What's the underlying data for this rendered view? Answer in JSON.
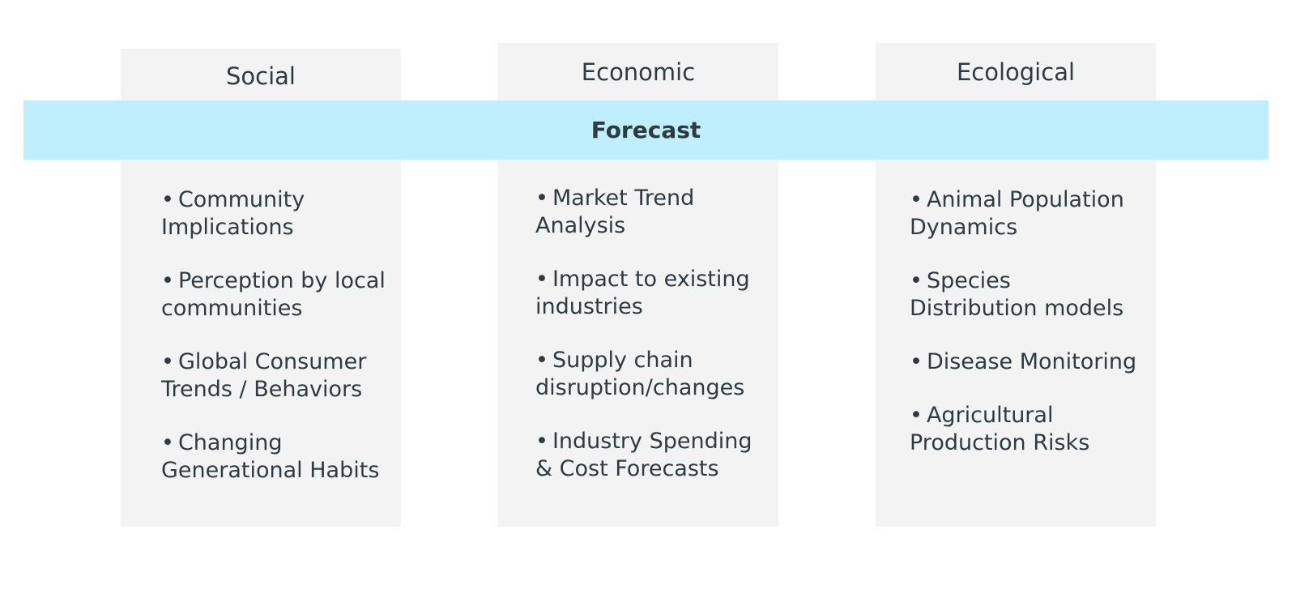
{
  "band": {
    "label": "Forecast",
    "color": "#bfeefc"
  },
  "columns": [
    {
      "title": "Social",
      "items": [
        "Community Implications",
        "Perception by local communities",
        "Global Consumer Trends / Behaviors",
        "Changing Generational Habits"
      ]
    },
    {
      "title": "Economic",
      "items": [
        "Market Trend Analysis",
        "Impact to existing industries",
        "Supply chain disruption/changes",
        "Industry Spending & Cost Forecasts"
      ]
    },
    {
      "title": "Ecological",
      "items": [
        "Animal Population Dynamics",
        "Species Distribution models",
        "Disease Monitoring",
        "Agricultural Production Risks"
      ]
    }
  ]
}
